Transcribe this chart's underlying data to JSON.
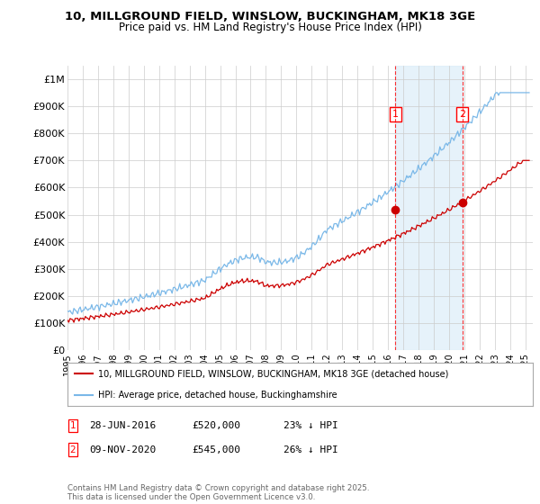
{
  "title1": "10, MILLGROUND FIELD, WINSLOW, BUCKINGHAM, MK18 3GE",
  "title2": "Price paid vs. HM Land Registry's House Price Index (HPI)",
  "ylabel_ticks": [
    "£0",
    "£100K",
    "£200K",
    "£300K",
    "£400K",
    "£500K",
    "£600K",
    "£700K",
    "£800K",
    "£900K",
    "£1M"
  ],
  "ytick_vals": [
    0,
    100000,
    200000,
    300000,
    400000,
    500000,
    600000,
    700000,
    800000,
    900000,
    1000000
  ],
  "ylim": [
    0,
    1050000
  ],
  "xlim_start": 1995.0,
  "xlim_end": 2025.5,
  "hpi_color": "#7ab8e8",
  "hpi_fill_color": "#d6eaf8",
  "price_color": "#cc0000",
  "marker1_date": 2016.49,
  "marker2_date": 2020.86,
  "marker1_price": 520000,
  "marker2_price": 545000,
  "legend_line1": "10, MILLGROUND FIELD, WINSLOW, BUCKINGHAM, MK18 3GE (detached house)",
  "legend_line2": "HPI: Average price, detached house, Buckinghamshire",
  "footnote": "Contains HM Land Registry data © Crown copyright and database right 2025.\nThis data is licensed under the Open Government Licence v3.0.",
  "background_color": "#ffffff",
  "grid_color": "#cccccc"
}
